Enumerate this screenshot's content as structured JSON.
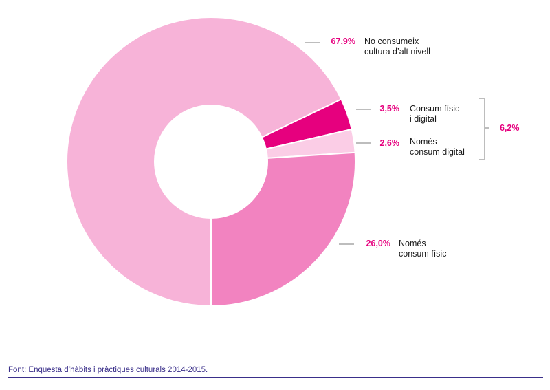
{
  "chart_data": {
    "type": "pie",
    "donut": true,
    "slices": [
      {
        "value": 67.9,
        "value_label": "67,9%",
        "label_lines": [
          "No consumeix",
          "cultura d’alt nivell"
        ],
        "color": "#f7b3d8"
      },
      {
        "value": 3.5,
        "value_label": "3,5%",
        "label_lines": [
          "Consum físic",
          "i digital"
        ],
        "color": "#e6007e"
      },
      {
        "value": 2.6,
        "value_label": "2,6%",
        "label_lines": [
          "Només",
          "consum digital"
        ],
        "color": "#fbcde6"
      },
      {
        "value": 26.0,
        "value_label": "26,0%",
        "label_lines": [
          "Només",
          "consum físic"
        ],
        "color": "#f283c0"
      }
    ],
    "group": {
      "value_label": "6,2%",
      "members": [
        1,
        2
      ]
    },
    "accent_color": "#e6007e",
    "text_color": "#1a1a1a",
    "leader_color": "#bdbdbd"
  },
  "source": "Font: Enquesta d’hàbits i pràctiques culturals 2014-2015."
}
